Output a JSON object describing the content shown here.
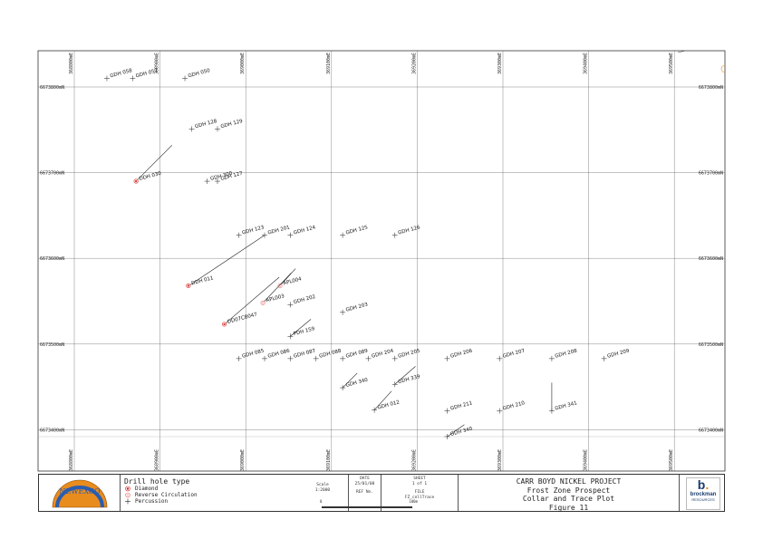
{
  "map": {
    "easting_labels": [
      "368800mE",
      "368900mE",
      "369000mE",
      "369100mE",
      "369200mE",
      "369300mE",
      "369400mE",
      "369500mE"
    ],
    "northing_labels": [
      "6673800mN",
      "6673700mN",
      "6673600mN",
      "6673500mN",
      "6673400mN"
    ],
    "holes": [
      {
        "id": "GDH 058",
        "type": "percussion",
        "e": 368838,
        "n": 6673810
      },
      {
        "id": "GDH 057",
        "type": "percussion",
        "e": 368868,
        "n": 6673810
      },
      {
        "id": "GDH 050",
        "type": "percussion",
        "e": 368929,
        "n": 6673810
      },
      {
        "id": "GDH 128",
        "type": "percussion",
        "e": 368937,
        "n": 6673751
      },
      {
        "id": "GDH 129",
        "type": "percussion",
        "e": 368967,
        "n": 6673751
      },
      {
        "id": "DDH 030",
        "type": "diamond",
        "e": 368872,
        "n": 6673690,
        "trace_to": [
          368914,
          6673732
        ]
      },
      {
        "id": "GDH 300",
        "type": "percussion",
        "e": 368955,
        "n": 6673690
      },
      {
        "id": "GDH 127",
        "type": "percussion",
        "e": 368967,
        "n": 6673690
      },
      {
        "id": "GDH 123",
        "type": "percussion",
        "e": 368992,
        "n": 6673627
      },
      {
        "id": "GDH 201",
        "type": "percussion",
        "e": 369022,
        "n": 6673627,
        "trace_from": [
          368935,
          6673569
        ]
      },
      {
        "id": "GDH 124",
        "type": "percussion",
        "e": 369052,
        "n": 6673627
      },
      {
        "id": "GDH 125",
        "type": "percussion",
        "e": 369113,
        "n": 6673627
      },
      {
        "id": "GDH 126",
        "type": "percussion",
        "e": 369174,
        "n": 6673627
      },
      {
        "id": "DDH 011",
        "type": "diamond",
        "e": 368933,
        "n": 6673568
      },
      {
        "id": "APL004",
        "type": "rc",
        "e": 369040,
        "n": 6673568,
        "trace_to": [
          369058,
          6673588
        ]
      },
      {
        "id": "APL003",
        "type": "rc",
        "e": 369020,
        "n": 6673548,
        "trace_to": [
          369053,
          6673583
        ]
      },
      {
        "id": "DD07CB047",
        "type": "diamond",
        "e": 368975,
        "n": 6673523,
        "trace_to": [
          369039,
          6673578
        ]
      },
      {
        "id": "GDH 202",
        "type": "percussion",
        "e": 369052,
        "n": 6673546
      },
      {
        "id": "GDH 203",
        "type": "percussion",
        "e": 369113,
        "n": 6673537
      },
      {
        "id": "PDH 159",
        "type": "percussion",
        "e": 369052,
        "n": 6673509,
        "trace_to": [
          369076,
          6673529
        ]
      },
      {
        "id": "GDH 085",
        "type": "percussion",
        "e": 368992,
        "n": 6673483
      },
      {
        "id": "GDH 086",
        "type": "percussion",
        "e": 369022,
        "n": 6673483
      },
      {
        "id": "GDH 087",
        "type": "percussion",
        "e": 369052,
        "n": 6673483
      },
      {
        "id": "GDH 088",
        "type": "percussion",
        "e": 369082,
        "n": 6673483
      },
      {
        "id": "GDH 089",
        "type": "percussion",
        "e": 369113,
        "n": 6673483
      },
      {
        "id": "GDH 204",
        "type": "percussion",
        "e": 369143,
        "n": 6673483
      },
      {
        "id": "GDH 205",
        "type": "percussion",
        "e": 369174,
        "n": 6673483
      },
      {
        "id": "GDH 206",
        "type": "percussion",
        "e": 369235,
        "n": 6673483
      },
      {
        "id": "GDH 207",
        "type": "percussion",
        "e": 369296,
        "n": 6673483
      },
      {
        "id": "GDH 208",
        "type": "percussion",
        "e": 369357,
        "n": 6673483
      },
      {
        "id": "GDH 209",
        "type": "percussion",
        "e": 369418,
        "n": 6673483
      },
      {
        "id": "GDH 340",
        "type": "percussion",
        "e": 369113,
        "n": 6673449,
        "trace_to": [
          369130,
          6673466
        ]
      },
      {
        "id": "GDH 339",
        "type": "percussion",
        "e": 369174,
        "n": 6673453,
        "trace_to": [
          369198,
          6673474
        ]
      },
      {
        "id": "GDH 012",
        "type": "percussion",
        "e": 369150,
        "n": 6673423,
        "trace_to": [
          369170,
          6673445
        ]
      },
      {
        "id": "GDH 211",
        "type": "percussion",
        "e": 369235,
        "n": 6673422
      },
      {
        "id": "GDH 210",
        "type": "percussion",
        "e": 369296,
        "n": 6673422
      },
      {
        "id": "GDH 341",
        "type": "percussion",
        "e": 369357,
        "n": 6673422,
        "trace_to": [
          369357,
          6673455
        ]
      },
      {
        "id": "GDH 340",
        "type": "percussion",
        "e": 369235,
        "n": 6673392,
        "trace_to": [
          369255,
          6673406
        ]
      }
    ]
  },
  "legend": {
    "title": "Drill hole type",
    "items": [
      {
        "symbol": "diamond",
        "label": "Diamond"
      },
      {
        "symbol": "rc",
        "label": "Reverse Circulation"
      },
      {
        "symbol": "percussion",
        "label": "Percussion"
      }
    ]
  },
  "title_block": {
    "scale_label": "Scale",
    "scale_value": "1:2000",
    "date_label": "DATE",
    "date_value": "25/01/08",
    "sheet_label": "SHEET",
    "sheet_value": "1 of 1",
    "ref_label": "REF No.",
    "file_label": "FILE",
    "file_value": "FZ_collTrace",
    "scalebar_start": "0",
    "scalebar_end": "100m",
    "project": "CARR BOYD NICKEL PROJECT",
    "prospect": "Frost Zone Prospect",
    "plot_title": "Collar and Trace Plot",
    "figure": "Figure 11",
    "logo_left_text": "NEWEXCO",
    "logo_right_text": "brockman",
    "logo_right_sub": "RESOURCES"
  },
  "colors": {
    "diamond": "#d32020",
    "rc": "#e87070",
    "grid": "#555555",
    "frame": "#333333"
  }
}
